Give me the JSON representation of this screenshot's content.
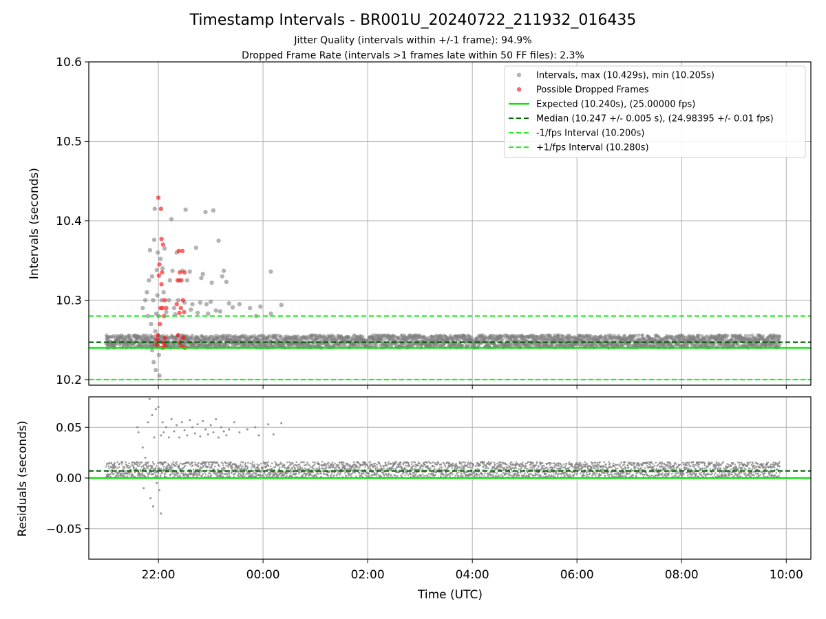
{
  "figure": {
    "title": "Timestamp Intervals - BR001U_20240722_211932_016435",
    "subtitle_1": "Jitter Quality (intervals within +/-1 frame): 94.9%",
    "subtitle_2": "Dropped Frame Rate (intervals >1 frames late within 50 FF files): 2.3%",
    "xlabel": "Time (UTC)"
  },
  "colors": {
    "intervals": "#808080",
    "dropped": "#ff0000",
    "expected": "#00e600",
    "median": "#006400",
    "fps_bounds": "#22ee22",
    "grid": "#b0b0b0"
  },
  "chart_data": [
    {
      "type": "scatter",
      "ylabel": "Intervals (seconds)",
      "x_unit": "hours UTC (values >= 24 are the next day)",
      "xlim": [
        20.67,
        34.47
      ],
      "ylim": [
        10.193,
        10.6
      ],
      "xticks": [
        {
          "value": 22,
          "label": "22:00"
        },
        {
          "value": 24,
          "label": "00:00"
        },
        {
          "value": 26,
          "label": "02:00"
        },
        {
          "value": 28,
          "label": "04:00"
        },
        {
          "value": 30,
          "label": "06:00"
        },
        {
          "value": 32,
          "label": "08:00"
        },
        {
          "value": 34,
          "label": "10:00"
        }
      ],
      "yticks": [
        {
          "value": 10.2,
          "label": "10.2"
        },
        {
          "value": 10.3,
          "label": "10.3"
        },
        {
          "value": 10.4,
          "label": "10.4"
        },
        {
          "value": 10.5,
          "label": "10.5"
        },
        {
          "value": 10.6,
          "label": "10.6"
        }
      ],
      "grid": true,
      "legend_position": "top-right",
      "series": [
        {
          "name": "Intervals, max (10.429s), min (10.205s)",
          "kind": "points",
          "max": 10.429,
          "min": 10.205
        },
        {
          "name": "Possible Dropped Frames",
          "kind": "points"
        },
        {
          "name": "Expected (10.240s), (25.00000 fps)",
          "kind": "hline",
          "y": 10.24,
          "style": "solid"
        },
        {
          "name": "Median (10.247 +/- 0.005 s), (24.98395 +/- 0.01 fps)",
          "kind": "hline",
          "y": 10.247,
          "style": "dashed"
        },
        {
          "name": "-1/fps Interval (10.200s)",
          "kind": "hline",
          "y": 10.2,
          "style": "dashed"
        },
        {
          "name": "+1/fps Interval (10.280s)",
          "kind": "hline",
          "y": 10.28,
          "style": "dashed"
        }
      ],
      "dense_band": {
        "x_range": [
          21.0,
          33.88
        ],
        "y_range": [
          10.24,
          10.256
        ]
      },
      "intervals_outliers": [
        {
          "x": 21.03,
          "y": 10.24
        },
        {
          "x": 21.03,
          "y": 10.25
        },
        {
          "x": 21.1,
          "y": 10.246
        },
        {
          "x": 21.7,
          "y": 10.29
        },
        {
          "x": 21.75,
          "y": 10.3
        },
        {
          "x": 21.78,
          "y": 10.31
        },
        {
          "x": 21.8,
          "y": 10.28
        },
        {
          "x": 21.82,
          "y": 10.325
        },
        {
          "x": 21.84,
          "y": 10.363
        },
        {
          "x": 21.86,
          "y": 10.27
        },
        {
          "x": 21.88,
          "y": 10.33
        },
        {
          "x": 21.88,
          "y": 10.237
        },
        {
          "x": 21.9,
          "y": 10.3
        },
        {
          "x": 21.91,
          "y": 10.222
        },
        {
          "x": 21.92,
          "y": 10.376
        },
        {
          "x": 21.93,
          "y": 10.415
        },
        {
          "x": 21.94,
          "y": 10.261
        },
        {
          "x": 21.95,
          "y": 10.212
        },
        {
          "x": 21.96,
          "y": 10.283
        },
        {
          "x": 21.97,
          "y": 10.338
        },
        {
          "x": 21.98,
          "y": 10.306
        },
        {
          "x": 21.99,
          "y": 10.36
        },
        {
          "x": 22.0,
          "y": 10.28
        },
        {
          "x": 22.01,
          "y": 10.231
        },
        {
          "x": 22.02,
          "y": 10.205
        },
        {
          "x": 22.04,
          "y": 10.352
        },
        {
          "x": 22.06,
          "y": 10.3
        },
        {
          "x": 22.08,
          "y": 10.34
        },
        {
          "x": 22.1,
          "y": 10.31
        },
        {
          "x": 22.12,
          "y": 10.365
        },
        {
          "x": 22.15,
          "y": 10.285
        },
        {
          "x": 22.2,
          "y": 10.3
        },
        {
          "x": 22.22,
          "y": 10.325
        },
        {
          "x": 22.25,
          "y": 10.402
        },
        {
          "x": 22.27,
          "y": 10.337
        },
        {
          "x": 22.3,
          "y": 10.29
        },
        {
          "x": 22.32,
          "y": 10.282
        },
        {
          "x": 22.35,
          "y": 10.36
        },
        {
          "x": 22.38,
          "y": 10.3
        },
        {
          "x": 22.4,
          "y": 10.325
        },
        {
          "x": 22.46,
          "y": 10.337
        },
        {
          "x": 22.5,
          "y": 10.297
        },
        {
          "x": 22.52,
          "y": 10.414
        },
        {
          "x": 22.55,
          "y": 10.325
        },
        {
          "x": 22.6,
          "y": 10.336
        },
        {
          "x": 22.62,
          "y": 10.288
        },
        {
          "x": 22.65,
          "y": 10.295
        },
        {
          "x": 22.72,
          "y": 10.366
        },
        {
          "x": 22.75,
          "y": 10.284
        },
        {
          "x": 22.8,
          "y": 10.297
        },
        {
          "x": 22.82,
          "y": 10.328
        },
        {
          "x": 22.85,
          "y": 10.333
        },
        {
          "x": 22.9,
          "y": 10.411
        },
        {
          "x": 22.92,
          "y": 10.295
        },
        {
          "x": 22.95,
          "y": 10.283
        },
        {
          "x": 23.0,
          "y": 10.298
        },
        {
          "x": 23.02,
          "y": 10.322
        },
        {
          "x": 23.05,
          "y": 10.413
        },
        {
          "x": 23.1,
          "y": 10.287
        },
        {
          "x": 23.15,
          "y": 10.375
        },
        {
          "x": 23.18,
          "y": 10.286
        },
        {
          "x": 23.22,
          "y": 10.33
        },
        {
          "x": 23.25,
          "y": 10.337
        },
        {
          "x": 23.3,
          "y": 10.323
        },
        {
          "x": 23.35,
          "y": 10.296
        },
        {
          "x": 23.42,
          "y": 10.291
        },
        {
          "x": 23.55,
          "y": 10.295
        },
        {
          "x": 23.75,
          "y": 10.29
        },
        {
          "x": 23.87,
          "y": 10.28
        },
        {
          "x": 23.95,
          "y": 10.292
        },
        {
          "x": 24.15,
          "y": 10.336
        },
        {
          "x": 24.15,
          "y": 10.283
        },
        {
          "x": 24.35,
          "y": 10.294
        }
      ],
      "dropped_frames": [
        {
          "x": 21.97,
          "y": 10.244
        },
        {
          "x": 21.98,
          "y": 10.25
        },
        {
          "x": 21.99,
          "y": 10.256
        },
        {
          "x": 22.0,
          "y": 10.429
        },
        {
          "x": 22.01,
          "y": 10.331
        },
        {
          "x": 22.02,
          "y": 10.345
        },
        {
          "x": 22.03,
          "y": 10.27
        },
        {
          "x": 22.04,
          "y": 10.29
        },
        {
          "x": 22.05,
          "y": 10.415
        },
        {
          "x": 22.06,
          "y": 10.377
        },
        {
          "x": 22.06,
          "y": 10.32
        },
        {
          "x": 22.07,
          "y": 10.335
        },
        {
          "x": 22.08,
          "y": 10.29
        },
        {
          "x": 22.08,
          "y": 10.24
        },
        {
          "x": 22.09,
          "y": 10.37
        },
        {
          "x": 22.1,
          "y": 10.246
        },
        {
          "x": 22.11,
          "y": 10.28
        },
        {
          "x": 22.12,
          "y": 10.3
        },
        {
          "x": 22.13,
          "y": 10.252
        },
        {
          "x": 22.14,
          "y": 10.242
        },
        {
          "x": 22.15,
          "y": 10.29
        },
        {
          "x": 22.35,
          "y": 10.295
        },
        {
          "x": 22.37,
          "y": 10.325
        },
        {
          "x": 22.38,
          "y": 10.256
        },
        {
          "x": 22.39,
          "y": 10.362
        },
        {
          "x": 22.4,
          "y": 10.284
        },
        {
          "x": 22.41,
          "y": 10.335
        },
        {
          "x": 22.42,
          "y": 10.247
        },
        {
          "x": 22.43,
          "y": 10.29
        },
        {
          "x": 22.44,
          "y": 10.325
        },
        {
          "x": 22.45,
          "y": 10.242
        },
        {
          "x": 22.46,
          "y": 10.362
        },
        {
          "x": 22.47,
          "y": 10.3
        },
        {
          "x": 22.48,
          "y": 10.253
        },
        {
          "x": 22.49,
          "y": 10.285
        },
        {
          "x": 22.5,
          "y": 10.335
        },
        {
          "x": 22.51,
          "y": 10.24
        }
      ]
    },
    {
      "type": "scatter",
      "ylabel": "Residuals (seconds)",
      "xlim": [
        20.67,
        34.47
      ],
      "ylim": [
        -0.08,
        0.08
      ],
      "yticks": [
        {
          "value": 0.05,
          "label": "0.05"
        },
        {
          "value": 0.0,
          "label": "0.00"
        },
        {
          "value": -0.05,
          "label": "−0.05"
        }
      ],
      "grid": true,
      "series": [
        {
          "name": "Residuals",
          "kind": "points"
        },
        {
          "name": "Expected",
          "kind": "hline",
          "y": 0.0,
          "style": "solid"
        },
        {
          "name": "Median",
          "kind": "hline",
          "y": 0.007,
          "style": "dashed"
        }
      ],
      "dense_bands": [
        {
          "x_range": [
            21.0,
            33.88
          ],
          "y_range": [
            0.0,
            0.016
          ]
        }
      ],
      "residual_outliers": [
        {
          "x": 21.6,
          "y": 0.05
        },
        {
          "x": 21.62,
          "y": 0.045
        },
        {
          "x": 21.7,
          "y": 0.03
        },
        {
          "x": 21.72,
          "y": -0.01
        },
        {
          "x": 21.75,
          "y": 0.02
        },
        {
          "x": 21.8,
          "y": 0.055
        },
        {
          "x": 21.83,
          "y": 0.078
        },
        {
          "x": 21.85,
          "y": -0.02
        },
        {
          "x": 21.88,
          "y": 0.062
        },
        {
          "x": 21.9,
          "y": -0.028
        },
        {
          "x": 21.92,
          "y": 0.04
        },
        {
          "x": 21.95,
          "y": 0.068
        },
        {
          "x": 21.97,
          "y": -0.005
        },
        {
          "x": 22.0,
          "y": 0.07
        },
        {
          "x": 22.02,
          "y": -0.012
        },
        {
          "x": 22.05,
          "y": -0.035
        },
        {
          "x": 22.05,
          "y": 0.042
        },
        {
          "x": 22.08,
          "y": 0.055
        },
        {
          "x": 22.1,
          "y": 0.045
        },
        {
          "x": 22.15,
          "y": 0.05
        },
        {
          "x": 22.2,
          "y": 0.04
        },
        {
          "x": 22.25,
          "y": 0.058
        },
        {
          "x": 22.3,
          "y": 0.046
        },
        {
          "x": 22.35,
          "y": 0.052
        },
        {
          "x": 22.4,
          "y": 0.04
        },
        {
          "x": 22.45,
          "y": 0.055
        },
        {
          "x": 22.5,
          "y": 0.047
        },
        {
          "x": 22.55,
          "y": 0.042
        },
        {
          "x": 22.6,
          "y": 0.057
        },
        {
          "x": 22.65,
          "y": 0.05
        },
        {
          "x": 22.7,
          "y": 0.044
        },
        {
          "x": 22.75,
          "y": 0.053
        },
        {
          "x": 22.8,
          "y": 0.041
        },
        {
          "x": 22.85,
          "y": 0.056
        },
        {
          "x": 22.9,
          "y": 0.048
        },
        {
          "x": 22.95,
          "y": 0.043
        },
        {
          "x": 23.0,
          "y": 0.052
        },
        {
          "x": 23.05,
          "y": 0.045
        },
        {
          "x": 23.1,
          "y": 0.058
        },
        {
          "x": 23.15,
          "y": 0.04
        },
        {
          "x": 23.2,
          "y": 0.05
        },
        {
          "x": 23.25,
          "y": 0.046
        },
        {
          "x": 23.3,
          "y": 0.042
        },
        {
          "x": 23.35,
          "y": 0.048
        },
        {
          "x": 23.45,
          "y": 0.055
        },
        {
          "x": 23.55,
          "y": 0.045
        },
        {
          "x": 23.7,
          "y": 0.048
        },
        {
          "x": 23.85,
          "y": 0.05
        },
        {
          "x": 23.92,
          "y": 0.042
        },
        {
          "x": 24.1,
          "y": 0.053
        },
        {
          "x": 24.2,
          "y": 0.043
        },
        {
          "x": 24.35,
          "y": 0.054
        }
      ]
    }
  ]
}
